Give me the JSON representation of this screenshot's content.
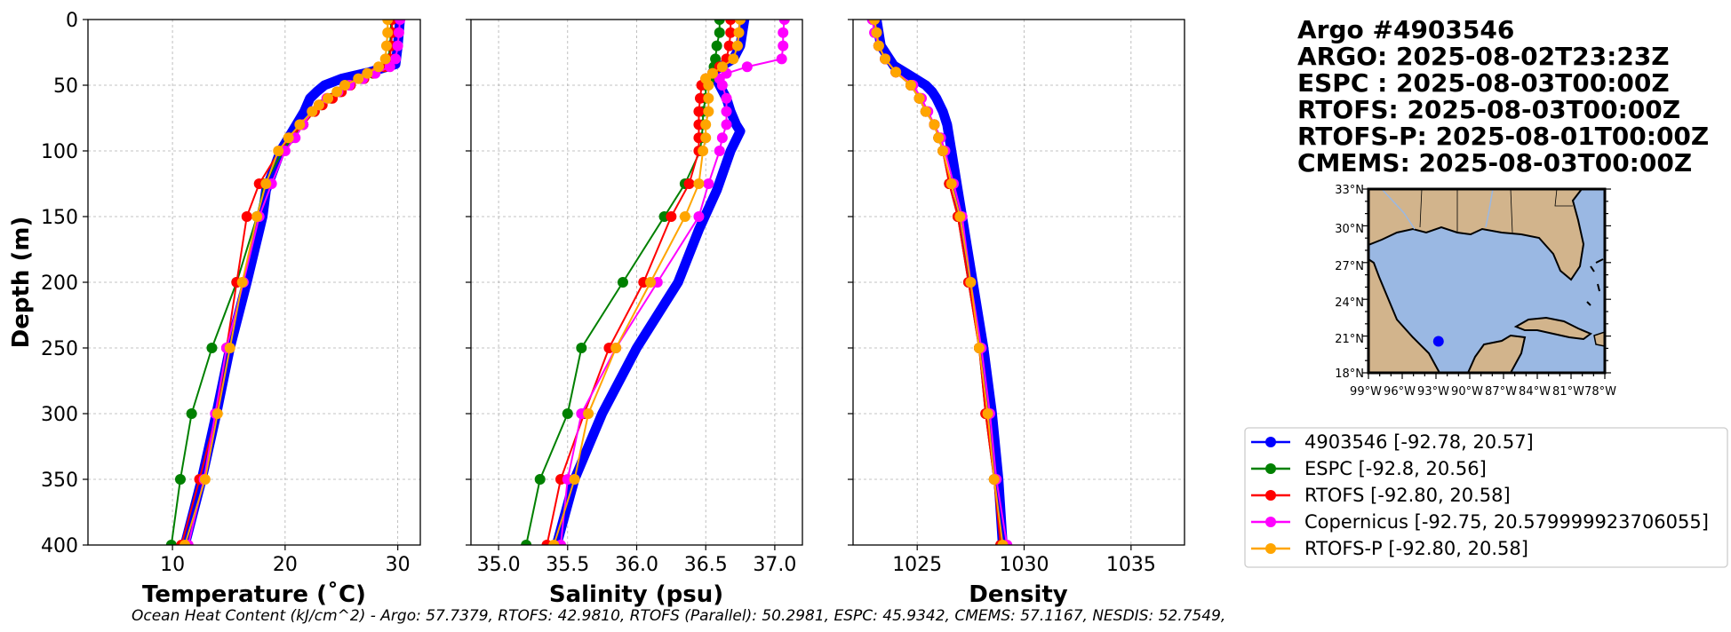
{
  "colors": {
    "argo": "#0000ff",
    "espc": "#008000",
    "rtofs": "#ff0000",
    "copernicus": "#ff00ff",
    "rtofs_p": "#ffa500",
    "land": "#d2b48c",
    "ocean": "#9ab8e3"
  },
  "chart_data": [
    {
      "type": "line",
      "id": "temperature",
      "xlabel": "Temperature (˚C)",
      "ylabel": "Depth (m)",
      "xlim": [
        2.5,
        32
      ],
      "ylim": [
        400,
        0
      ],
      "xticks": [
        10,
        20,
        30
      ],
      "yticks": [
        0,
        50,
        100,
        150,
        200,
        250,
        300,
        350,
        400
      ],
      "grid": true,
      "series": [
        {
          "name": "4903546",
          "color": "#0000ff",
          "dense": true,
          "depths": [
            0,
            20,
            34,
            40,
            45,
            50,
            55,
            60,
            70,
            80,
            100,
            130,
            150,
            200,
            250,
            300,
            350,
            400
          ],
          "values": [
            30.2,
            30.0,
            29.8,
            27.5,
            25.0,
            23.5,
            22.8,
            22.2,
            21.7,
            21.0,
            19.6,
            18.3,
            18.0,
            16.6,
            15.1,
            13.9,
            12.6,
            11.1
          ]
        },
        {
          "name": "ESPC",
          "color": "#008000",
          "depths": [
            0,
            10,
            20,
            30,
            36,
            41,
            45,
            50,
            55,
            60,
            65,
            70,
            80,
            90,
            100,
            125,
            150,
            200,
            250,
            300,
            350,
            400
          ],
          "values": [
            29.4,
            29.4,
            29.3,
            29.2,
            28.8,
            27.8,
            26.8,
            25.7,
            24.9,
            24.1,
            23.2,
            22.6,
            21.6,
            20.6,
            19.8,
            18.2,
            17.5,
            15.7,
            13.5,
            11.7,
            10.7,
            9.9
          ]
        },
        {
          "name": "RTOFS",
          "color": "#ff0000",
          "depths": [
            0,
            10,
            20,
            30,
            36,
            41,
            45,
            50,
            55,
            60,
            65,
            70,
            80,
            90,
            100,
            125,
            150,
            200,
            250,
            300,
            350,
            400
          ],
          "values": [
            29.5,
            29.5,
            29.4,
            29.3,
            28.8,
            27.9,
            27.0,
            25.8,
            25.0,
            24.2,
            23.3,
            22.6,
            21.6,
            20.4,
            19.5,
            17.7,
            16.6,
            15.7,
            14.8,
            13.9,
            12.4,
            10.8
          ]
        },
        {
          "name": "Copernicus",
          "color": "#ff00ff",
          "depths": [
            0,
            10,
            20,
            30,
            36,
            41,
            45,
            50,
            55,
            60,
            65,
            70,
            80,
            90,
            100,
            125,
            150,
            200,
            250,
            300,
            350,
            400
          ],
          "values": [
            30.2,
            30.1,
            30.0,
            29.8,
            29.3,
            28.0,
            26.9,
            25.7,
            24.7,
            23.7,
            23.0,
            22.4,
            21.6,
            20.9,
            20.0,
            18.8,
            17.7,
            16.3,
            14.8,
            13.8,
            12.8,
            11.4
          ]
        },
        {
          "name": "RTOFS-P",
          "color": "#ffa500",
          "depths": [
            0,
            10,
            20,
            30,
            36,
            41,
            45,
            50,
            55,
            60,
            65,
            70,
            80,
            90,
            100,
            125,
            150,
            200,
            250,
            300,
            350,
            400
          ],
          "values": [
            29.1,
            29.1,
            29.0,
            28.9,
            28.3,
            27.3,
            26.5,
            25.3,
            24.6,
            23.8,
            23.0,
            22.4,
            21.3,
            20.3,
            19.4,
            18.3,
            17.5,
            16.2,
            15.1,
            14.0,
            12.9,
            11.1
          ]
        }
      ]
    },
    {
      "type": "line",
      "id": "salinity",
      "xlabel": "Salinity (psu)",
      "xlim": [
        34.8,
        37.2
      ],
      "ylim": [
        400,
        0
      ],
      "xticks": [
        35.0,
        35.5,
        36.0,
        36.5,
        37.0
      ],
      "xticklabels": [
        "35.0",
        "35.5",
        "36.0",
        "36.5",
        "37.0"
      ],
      "yticks": [
        0,
        50,
        100,
        150,
        200,
        250,
        300,
        350,
        400
      ],
      "grid": true,
      "series": [
        {
          "name": "4903546",
          "color": "#0000ff",
          "dense": true,
          "depths": [
            0,
            20,
            30,
            35,
            40,
            50,
            60,
            70,
            80,
            85,
            100,
            130,
            160,
            200,
            250,
            300,
            350,
            400
          ],
          "values": [
            36.78,
            36.75,
            36.7,
            36.62,
            36.55,
            36.6,
            36.65,
            36.68,
            36.72,
            36.75,
            36.68,
            36.58,
            36.45,
            36.3,
            36.0,
            35.75,
            35.55,
            35.42
          ]
        },
        {
          "name": "ESPC",
          "color": "#008000",
          "depths": [
            0,
            10,
            20,
            30,
            36,
            41,
            45,
            50,
            60,
            70,
            80,
            90,
            100,
            125,
            150,
            200,
            250,
            300,
            350,
            400
          ],
          "values": [
            36.6,
            36.6,
            36.58,
            36.57,
            36.56,
            36.55,
            36.53,
            36.5,
            36.5,
            36.48,
            36.48,
            36.47,
            36.46,
            36.35,
            36.2,
            35.9,
            35.6,
            35.5,
            35.3,
            35.2
          ]
        },
        {
          "name": "RTOFS",
          "color": "#ff0000",
          "depths": [
            0,
            10,
            20,
            30,
            36,
            41,
            45,
            50,
            60,
            70,
            80,
            90,
            100,
            125,
            150,
            200,
            250,
            300,
            350,
            400
          ],
          "values": [
            36.68,
            36.68,
            36.67,
            36.65,
            36.6,
            36.55,
            36.5,
            36.47,
            36.46,
            36.45,
            36.45,
            36.45,
            36.45,
            36.38,
            36.25,
            36.05,
            35.8,
            35.62,
            35.45,
            35.35
          ]
        },
        {
          "name": "Copernicus",
          "color": "#ff00ff",
          "depths": [
            0,
            10,
            20,
            30,
            36,
            41,
            45,
            50,
            60,
            70,
            80,
            90,
            100,
            125,
            150,
            200,
            250,
            300,
            350,
            400
          ],
          "values": [
            37.07,
            37.06,
            37.06,
            37.05,
            36.8,
            36.65,
            36.6,
            36.62,
            36.65,
            36.65,
            36.65,
            36.62,
            36.6,
            36.52,
            36.45,
            36.15,
            35.85,
            35.6,
            35.5,
            35.45
          ]
        },
        {
          "name": "RTOFS-P",
          "color": "#ffa500",
          "depths": [
            0,
            10,
            20,
            30,
            36,
            41,
            45,
            50,
            60,
            70,
            80,
            90,
            100,
            125,
            150,
            200,
            250,
            300,
            350,
            400
          ],
          "values": [
            36.75,
            36.74,
            36.73,
            36.7,
            36.62,
            36.55,
            36.5,
            36.52,
            36.52,
            36.52,
            36.5,
            36.5,
            36.48,
            36.45,
            36.35,
            36.1,
            35.85,
            35.65,
            35.55,
            35.4
          ]
        }
      ]
    },
    {
      "type": "line",
      "id": "density",
      "xlabel": "Density",
      "xlim": [
        1022,
        1037.5
      ],
      "ylim": [
        400,
        0
      ],
      "xticks": [
        1025,
        1030,
        1035
      ],
      "yticks": [
        0,
        50,
        100,
        150,
        200,
        250,
        300,
        350,
        400
      ],
      "grid": true,
      "series": [
        {
          "name": "4903546",
          "color": "#0000ff",
          "dense": true,
          "depths": [
            0,
            20,
            35,
            45,
            50,
            55,
            60,
            70,
            80,
            100,
            150,
            200,
            250,
            300,
            350,
            400
          ],
          "values": [
            1023.1,
            1023.3,
            1023.9,
            1024.9,
            1025.4,
            1025.7,
            1025.9,
            1026.2,
            1026.4,
            1026.6,
            1027.1,
            1027.6,
            1028.1,
            1028.5,
            1028.8,
            1029.0
          ]
        },
        {
          "name": "ESPC",
          "color": "#008000",
          "depths": [
            0,
            10,
            20,
            30,
            40,
            50,
            60,
            70,
            80,
            90,
            100,
            125,
            150,
            200,
            250,
            300,
            350,
            400
          ],
          "values": [
            1023.0,
            1023.1,
            1023.2,
            1023.5,
            1024.0,
            1024.7,
            1025.1,
            1025.4,
            1025.8,
            1026.0,
            1026.2,
            1026.5,
            1026.9,
            1027.4,
            1027.9,
            1028.2,
            1028.6,
            1028.9
          ]
        },
        {
          "name": "RTOFS",
          "color": "#ff0000",
          "depths": [
            0,
            10,
            20,
            30,
            40,
            50,
            60,
            70,
            80,
            90,
            100,
            125,
            150,
            200,
            250,
            300,
            350,
            400
          ],
          "values": [
            1023.0,
            1023.1,
            1023.2,
            1023.5,
            1024.0,
            1024.7,
            1025.1,
            1025.4,
            1025.8,
            1026.0,
            1026.2,
            1026.5,
            1026.9,
            1027.4,
            1027.9,
            1028.2,
            1028.6,
            1028.9
          ]
        },
        {
          "name": "Copernicus",
          "color": "#ff00ff",
          "depths": [
            0,
            10,
            20,
            30,
            40,
            50,
            60,
            70,
            80,
            90,
            100,
            125,
            150,
            200,
            250,
            300,
            350,
            400
          ],
          "values": [
            1022.9,
            1023.0,
            1023.2,
            1023.5,
            1024.0,
            1024.8,
            1025.2,
            1025.5,
            1025.8,
            1026.1,
            1026.3,
            1026.7,
            1027.1,
            1027.5,
            1028.0,
            1028.4,
            1028.7,
            1029.2
          ]
        },
        {
          "name": "RTOFS-P",
          "color": "#ffa500",
          "depths": [
            0,
            10,
            20,
            30,
            40,
            50,
            60,
            70,
            80,
            90,
            100,
            125,
            150,
            200,
            250,
            300,
            350,
            400
          ],
          "values": [
            1023.0,
            1023.1,
            1023.2,
            1023.5,
            1024.0,
            1024.7,
            1025.1,
            1025.4,
            1025.8,
            1026.0,
            1026.2,
            1026.6,
            1027.0,
            1027.5,
            1027.9,
            1028.3,
            1028.6,
            1029.0
          ]
        }
      ]
    }
  ],
  "info": {
    "title": "Argo #4903546",
    "argo": "ARGO: 2025-08-02T23:23Z",
    "espc": "ESPC : 2025-08-03T00:00Z",
    "rtofs": "RTOFS: 2025-08-03T00:00Z",
    "rtofs_p": "RTOFS-P: 2025-08-01T00:00Z",
    "cmems": "CMEMS: 2025-08-03T00:00Z"
  },
  "map": {
    "lat_labels": [
      "33°N",
      "30°N",
      "27°N",
      "24°N",
      "21°N",
      "18°N"
    ],
    "lon_labels": [
      "99°W",
      "96°W",
      "93°W",
      "90°W",
      "87°W",
      "84°W",
      "81°W",
      "78°W"
    ],
    "lon_range": [
      -99,
      -78
    ],
    "lat_range": [
      18,
      33
    ],
    "float_position": {
      "lon": -92.78,
      "lat": 20.57
    }
  },
  "legend": [
    {
      "label": "4903546 [-92.78, 20.57]",
      "color": "#0000ff"
    },
    {
      "label": "ESPC [-92.8, 20.56]",
      "color": "#008000"
    },
    {
      "label": "RTOFS [-92.80, 20.58]",
      "color": "#ff0000"
    },
    {
      "label": "Copernicus [-92.75, 20.579999923706055]",
      "color": "#ff00ff"
    },
    {
      "label": "RTOFS-P [-92.80, 20.58]",
      "color": "#ffa500"
    }
  ],
  "footer": "Ocean Heat Content (kJ/cm^2) - Argo: 57.7379,  RTOFS: 42.9810,  RTOFS (Parallel): 50.2981,  ESPC: 45.9342,  CMEMS: 57.1167,  NESDIS: 52.7549,"
}
